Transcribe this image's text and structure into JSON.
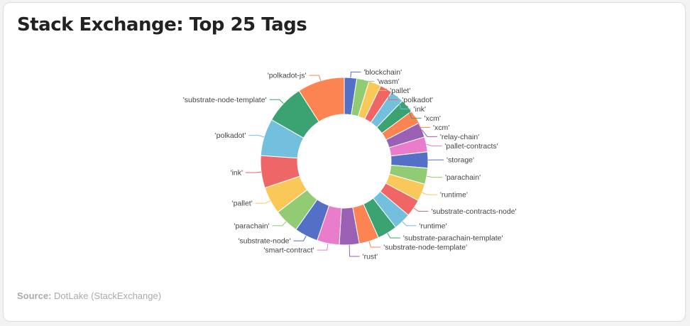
{
  "title": "Stack Exchange: Top 25 Tags",
  "source": {
    "label": "Source:",
    "text": "DotLake (StackExchange)"
  },
  "chart_data": {
    "type": "pie",
    "variant": "donut",
    "title": "Stack Exchange: Top 25 Tags",
    "legend": "none",
    "palette": [
      "#5470c6",
      "#91cc75",
      "#fac858",
      "#ee6666",
      "#73c0de",
      "#3ba272",
      "#fc8452",
      "#9a60b4",
      "#ea7ccc"
    ],
    "slices": [
      {
        "label": "'blockchain'",
        "value": 10
      },
      {
        "label": "'wasm'",
        "value": 10
      },
      {
        "label": "'pallet'",
        "value": 10
      },
      {
        "label": "'polkadot'",
        "value": 10
      },
      {
        "label": "'ink'",
        "value": 11
      },
      {
        "label": "'xcm'",
        "value": 11
      },
      {
        "label": "'xcm'",
        "value": 11
      },
      {
        "label": "'relay-chain'",
        "value": 12
      },
      {
        "label": "'pallet-contracts'",
        "value": 12
      },
      {
        "label": "'storage'",
        "value": 13
      },
      {
        "label": "'parachain'",
        "value": 13
      },
      {
        "label": "'runtime'",
        "value": 14
      },
      {
        "label": "'substrate-contracts-node'",
        "value": 14
      },
      {
        "label": "'runtime'",
        "value": 14
      },
      {
        "label": "'substrate-parachain-template'",
        "value": 16
      },
      {
        "label": "'substrate-node-template'",
        "value": 16
      },
      {
        "label": "'rust'",
        "value": 16
      },
      {
        "label": "'smart-contract'",
        "value": 18
      },
      {
        "label": "'substrate-node'",
        "value": 19
      },
      {
        "label": "'parachain'",
        "value": 20
      },
      {
        "label": "'pallet'",
        "value": 22
      },
      {
        "label": "'ink'",
        "value": 26
      },
      {
        "label": "'polkadot'",
        "value": 30
      },
      {
        "label": "'substrate-node-template'",
        "value": 32
      },
      {
        "label": "'polkadot-js'",
        "value": 38
      }
    ]
  }
}
